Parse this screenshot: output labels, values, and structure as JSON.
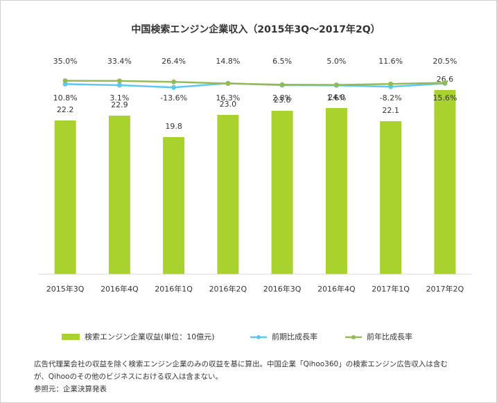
{
  "chart_data": {
    "type": "bar+line",
    "title": "中国検索エンジン企業収入（2015年3Q～2017年2Q）",
    "categories": [
      "2015年3Q",
      "2016年4Q",
      "2016年1Q",
      "2016年2Q",
      "2016年3Q",
      "2016年4Q",
      "2017年1Q",
      "2017年2Q"
    ],
    "bar_series": {
      "name": "検索エンジン企業収益(単位：10億元)",
      "color": "#a9d22f",
      "values": [
        22.2,
        22.9,
        19.8,
        23.0,
        23.6,
        24.0,
        22.1,
        26.6
      ],
      "labels": [
        "22.2",
        "22.9",
        "19.8",
        "23.0",
        "23.6",
        "24.0",
        "22.1",
        "26.6"
      ]
    },
    "line_series": [
      {
        "name": "前期比成長率",
        "color": "#5bc8f0",
        "values": [
          10.8,
          3.1,
          -13.6,
          16.3,
          2.8,
          1.6,
          -8.2,
          15.6
        ],
        "labels": [
          "10.8%",
          "3.1%",
          "-13.6%",
          "16.3%",
          "2.8%",
          "1.6%",
          "-8.2%",
          "15.6%"
        ]
      },
      {
        "name": "前年比成長率",
        "color": "#95b957",
        "values": [
          35.0,
          33.4,
          26.4,
          14.8,
          6.5,
          5.0,
          11.6,
          20.5
        ],
        "labels": [
          "35.0%",
          "33.4%",
          "26.4%",
          "14.8%",
          "6.5%",
          "5.0%",
          "11.6%",
          "20.5%"
        ]
      }
    ],
    "bar_ylim": [
      0,
      30
    ],
    "grid": false,
    "legend_position": "bottom"
  },
  "notes": [
    "広告代理業会社の収益を除く検索エンジン企業のみの収益を基に算出。中国企業「Qihoo360」の検索エンジン広告収入は含む",
    "が、Qihooのその他のビジネスにおける収入は含まない。",
    "参照元：企業決算発表"
  ]
}
